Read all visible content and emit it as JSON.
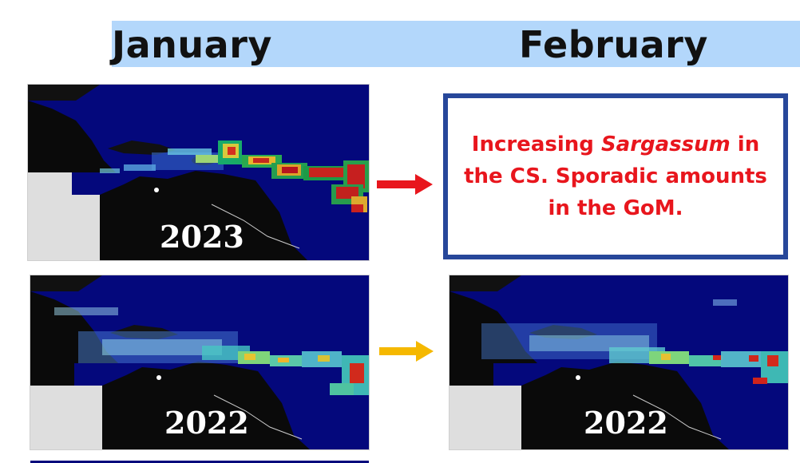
{
  "header": {
    "january_label": "January",
    "february_label": "February"
  },
  "maps": [
    {
      "id": "jan-2023",
      "year_label": "2023"
    },
    {
      "id": "jan-2022",
      "year_label": "2022"
    },
    {
      "id": "feb-2022",
      "year_label": "2022"
    }
  ],
  "note": {
    "prefix": "Increasing ",
    "emphasis": "Sargassum",
    "suffix": " in the CS. Sporadic amounts in the GoM."
  },
  "colors": {
    "header_bar": "#b3d7fb",
    "ocean": "#04087c",
    "note_border": "#27479a",
    "note_text": "#e8161d",
    "arrow_top": "#e8161d",
    "arrow_bottom": "#f5b800"
  }
}
